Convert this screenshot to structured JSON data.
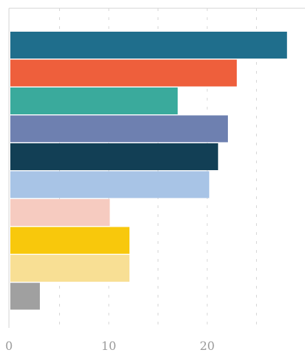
{
  "chart_data": {
    "type": "bar",
    "orientation": "horizontal",
    "title": "",
    "xlabel": "",
    "ylabel": "",
    "xlim": [
      0,
      30
    ],
    "x_ticks": [
      0,
      10,
      20
    ],
    "x_tick_labels": [
      "0",
      "10",
      "20"
    ],
    "grid": true,
    "legend": "none",
    "bars": [
      {
        "value": 28.1,
        "color": "#1f6e8c"
      },
      {
        "value": 23.0,
        "color": "#ee5f3c"
      },
      {
        "value": 17.0,
        "color": "#3aaa9c"
      },
      {
        "value": 22.1,
        "color": "#6e80b0"
      },
      {
        "value": 21.1,
        "color": "#123f55"
      },
      {
        "value": 20.2,
        "color": "#a8c4e6"
      },
      {
        "value": 10.1,
        "color": "#f6cbc0"
      },
      {
        "value": 12.1,
        "color": "#f8c80c"
      },
      {
        "value": 12.1,
        "color": "#f8df94"
      },
      {
        "value": 3.0,
        "color": "#a0a0a0"
      }
    ]
  }
}
